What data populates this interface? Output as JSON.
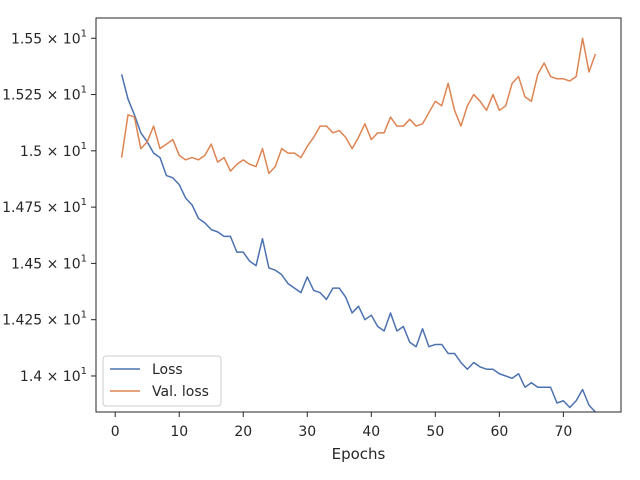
{
  "chart_data": {
    "type": "line",
    "xlabel": "Epochs",
    "ylabel": "",
    "title": "",
    "xlim": [
      -3,
      79
    ],
    "ylim": [
      13.84,
      15.59
    ],
    "x_ticks": [
      0,
      10,
      20,
      30,
      40,
      50,
      60,
      70
    ],
    "y_ticks": [
      {
        "value": 14.0,
        "base": "1.4",
        "exp": "1"
      },
      {
        "value": 14.25,
        "base": "1.425",
        "exp": "1"
      },
      {
        "value": 14.5,
        "base": "1.45",
        "exp": "1"
      },
      {
        "value": 14.75,
        "base": "1.475",
        "exp": "1"
      },
      {
        "value": 15.0,
        "base": "1.5",
        "exp": "1"
      },
      {
        "value": 15.25,
        "base": "1.525",
        "exp": "1"
      },
      {
        "value": 15.5,
        "base": "1.55",
        "exp": "1"
      }
    ],
    "y_tick_multiplier": "× 10",
    "legend_position": "lower-left",
    "grid": false,
    "series": [
      {
        "name": "Loss",
        "color": "#4c72b0",
        "x": [
          1,
          2,
          3,
          4,
          5,
          6,
          7,
          8,
          9,
          10,
          11,
          12,
          13,
          14,
          15,
          16,
          17,
          18,
          19,
          20,
          21,
          22,
          23,
          24,
          25,
          26,
          27,
          28,
          29,
          30,
          31,
          32,
          33,
          34,
          35,
          36,
          37,
          38,
          39,
          40,
          41,
          42,
          43,
          44,
          45,
          46,
          47,
          48,
          49,
          50,
          51,
          52,
          53,
          54,
          55,
          56,
          57,
          58,
          59,
          60,
          61,
          62,
          63,
          64,
          65,
          66,
          67,
          68,
          69,
          70,
          71,
          72,
          73,
          74,
          75
        ],
        "values": [
          15.34,
          15.23,
          15.16,
          15.08,
          15.04,
          14.99,
          14.97,
          14.89,
          14.88,
          14.85,
          14.79,
          14.76,
          14.7,
          14.68,
          14.65,
          14.64,
          14.62,
          14.62,
          14.55,
          14.55,
          14.51,
          14.49,
          14.61,
          14.48,
          14.47,
          14.45,
          14.41,
          14.39,
          14.37,
          14.44,
          14.38,
          14.37,
          14.34,
          14.39,
          14.39,
          14.35,
          14.28,
          14.31,
          14.25,
          14.27,
          14.22,
          14.2,
          14.28,
          14.2,
          14.22,
          14.15,
          14.13,
          14.21,
          14.13,
          14.14,
          14.14,
          14.1,
          14.1,
          14.06,
          14.03,
          14.06,
          14.04,
          14.03,
          14.03,
          14.01,
          14.0,
          13.99,
          14.01,
          13.95,
          13.97,
          13.95,
          13.95,
          13.95,
          13.88,
          13.89,
          13.86,
          13.89,
          13.94,
          13.87,
          13.84
        ]
      },
      {
        "name": "Val. loss",
        "color": "#dd8452",
        "x": [
          1,
          2,
          3,
          4,
          5,
          6,
          7,
          8,
          9,
          10,
          11,
          12,
          13,
          14,
          15,
          16,
          17,
          18,
          19,
          20,
          21,
          22,
          23,
          24,
          25,
          26,
          27,
          28,
          29,
          30,
          31,
          32,
          33,
          34,
          35,
          36,
          37,
          38,
          39,
          40,
          41,
          42,
          43,
          44,
          45,
          46,
          47,
          48,
          49,
          50,
          51,
          52,
          53,
          54,
          55,
          56,
          57,
          58,
          59,
          60,
          61,
          62,
          63,
          64,
          65,
          66,
          67,
          68,
          69,
          70,
          71,
          72,
          73,
          74,
          75
        ],
        "values": [
          14.97,
          15.16,
          15.15,
          15.01,
          15.04,
          15.11,
          15.01,
          15.03,
          15.05,
          14.98,
          14.96,
          14.97,
          14.96,
          14.98,
          15.03,
          14.95,
          14.97,
          14.91,
          14.94,
          14.96,
          14.94,
          14.93,
          15.01,
          14.9,
          14.93,
          15.01,
          14.99,
          14.99,
          14.97,
          15.02,
          15.06,
          15.11,
          15.11,
          15.08,
          15.09,
          15.06,
          15.01,
          15.06,
          15.12,
          15.05,
          15.08,
          15.08,
          15.15,
          15.11,
          15.11,
          15.14,
          15.11,
          15.12,
          15.17,
          15.22,
          15.2,
          15.3,
          15.18,
          15.11,
          15.2,
          15.25,
          15.22,
          15.18,
          15.25,
          15.18,
          15.2,
          15.3,
          15.33,
          15.24,
          15.22,
          15.34,
          15.39,
          15.33,
          15.32,
          15.32,
          15.31,
          15.33,
          15.5,
          15.35,
          15.43
        ]
      }
    ]
  }
}
